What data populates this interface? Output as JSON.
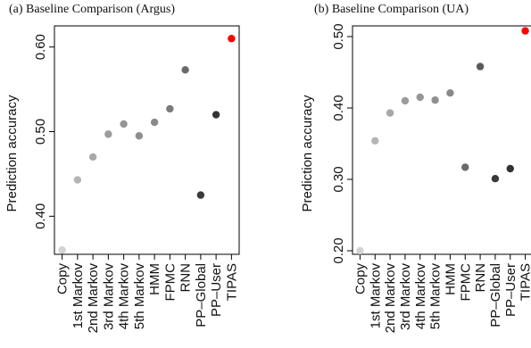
{
  "chart_data": [
    {
      "type": "scatter",
      "title": "(a)  Baseline Comparison (Argus)",
      "ylabel": "Prediction accuracy",
      "ylim": [
        0.355,
        0.625
      ],
      "yticks": [
        "0.40",
        "0.50",
        "0.60"
      ],
      "ytick_values": [
        0.4,
        0.5,
        0.6
      ],
      "categories": [
        "Copy",
        "1st Markov",
        "2nd Markov",
        "3rd Markov",
        "4th Markov",
        "5th Markov",
        "HMM",
        "FPMC",
        "RNN",
        "PP–Global",
        "PP–User",
        "TIPAS"
      ],
      "values": [
        0.36,
        0.443,
        0.47,
        0.497,
        0.509,
        0.495,
        0.511,
        0.527,
        0.573,
        0.425,
        0.52,
        0.61
      ],
      "colors": [
        "#d3d3d3",
        "#b4b4b4",
        "#a8a8a8",
        "#9c9c9c",
        "#969696",
        "#8f8f8f",
        "#898989",
        "#7a7a7a",
        "#6a6a6a",
        "#3a3a3a",
        "#333333",
        "#ff0000"
      ],
      "highlight_label_color": "#ff0000",
      "grid": false,
      "legend": false
    },
    {
      "type": "scatter",
      "title": "(b)  Baseline Comparison (UA)",
      "ylabel": "Prediction accuracy",
      "ylim": [
        0.195,
        0.515
      ],
      "yticks": [
        "0.20",
        "0.30",
        "0.40",
        "0.50"
      ],
      "ytick_values": [
        0.2,
        0.3,
        0.4,
        0.5
      ],
      "categories": [
        "Copy",
        "1st Markov",
        "2nd Markov",
        "3rd Markov",
        "4th Markov",
        "5th Markov",
        "HMM",
        "FPMC",
        "RNN",
        "PP–Global",
        "PP–User",
        "TIPAS"
      ],
      "values": [
        0.2,
        0.354,
        0.393,
        0.41,
        0.415,
        0.411,
        0.421,
        0.317,
        0.458,
        0.301,
        0.315,
        0.508
      ],
      "colors": [
        "#d3d3d3",
        "#b4b4b4",
        "#a8a8a8",
        "#9c9c9c",
        "#969696",
        "#8f8f8f",
        "#898989",
        "#6a6a6a",
        "#5a5a5a",
        "#3a3a3a",
        "#333333",
        "#ff0000"
      ],
      "highlight_label_color": "#ff0000",
      "grid": false,
      "legend": false
    }
  ]
}
